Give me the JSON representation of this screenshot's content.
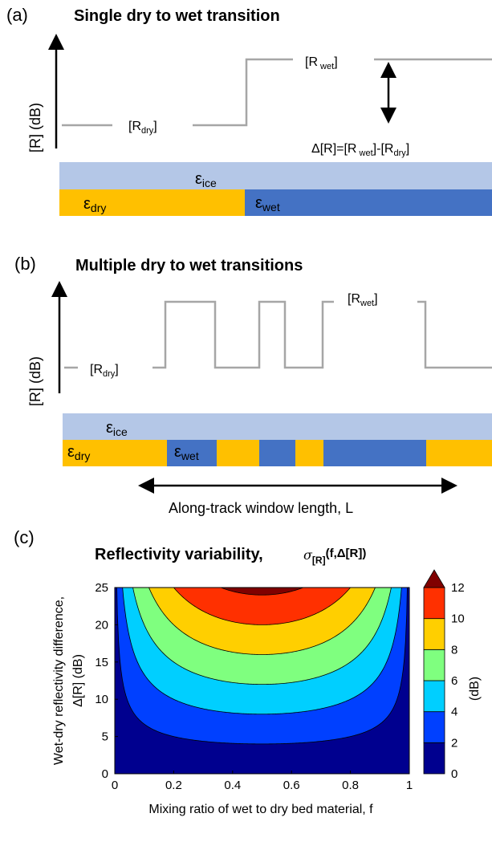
{
  "panel_a": {
    "label": "(a)",
    "title": "Single dry to wet transition",
    "ylabel": "[R]  (dB)",
    "r_dry": [
      "[R",
      "dry",
      "]"
    ],
    "r_wet": [
      "[R",
      " wet",
      "]"
    ],
    "delta_eq": [
      "Δ[R]=[R",
      " wet",
      "]-[R",
      "dry",
      "]"
    ],
    "eps_ice": [
      "ε",
      "ice"
    ],
    "eps_dry": [
      "ε",
      "dry"
    ],
    "eps_wet": [
      "ε",
      "wet"
    ]
  },
  "panel_b": {
    "label": "(b)",
    "title": "Multiple dry to wet transitions",
    "ylabel": "[R]  (dB)",
    "r_dry": [
      "[R",
      "dry",
      "]"
    ],
    "r_wet": [
      "[R",
      "wet",
      "]"
    ],
    "eps_ice": [
      "ε",
      "ice"
    ],
    "eps_dry": [
      "ε",
      "dry"
    ],
    "eps_wet": [
      "ε",
      "wet"
    ],
    "window_label": "Along-track window length, L"
  },
  "colors": {
    "ice": "#b4c7e7",
    "dry": "#ffc000",
    "wet": "#4472c4",
    "signal": "#a6a6a6"
  },
  "chart_data": {
    "type": "contour",
    "label": "(c)",
    "title": "Reflectivity variability,",
    "title_symbol": [
      "σ",
      "[R]",
      "(f,Δ[R])"
    ],
    "xlabel": "Mixing ratio of wet to dry bed material, f",
    "ylabel_line1": "Wet-dry reflectivity difference,",
    "ylabel_line2": "Δ[R]  (dB)",
    "xlim": [
      0,
      1
    ],
    "ylim": [
      0,
      25
    ],
    "xticks": [
      "0",
      "0.2",
      "0.4",
      "0.6",
      "0.8",
      "1"
    ],
    "xtick_values": [
      0,
      0.2,
      0.4,
      0.6,
      0.8,
      1
    ],
    "yticks": [
      "0",
      "5",
      "10",
      "15",
      "20",
      "25"
    ],
    "ytick_values": [
      0,
      5,
      10,
      15,
      20,
      25
    ],
    "formula": "sigma = delta_R * sqrt(f * (1 - f))",
    "levels": [
      0,
      2,
      4,
      6,
      8,
      10,
      12
    ],
    "level_colors": [
      "#00008f",
      "#0040ff",
      "#00cfff",
      "#7fff7f",
      "#ffcf00",
      "#ff3000",
      "#800000"
    ],
    "colorbar_ticks": [
      "0",
      "2",
      "4",
      "6",
      "8",
      "10",
      "12"
    ],
    "colorbar_label": "(dB)"
  }
}
